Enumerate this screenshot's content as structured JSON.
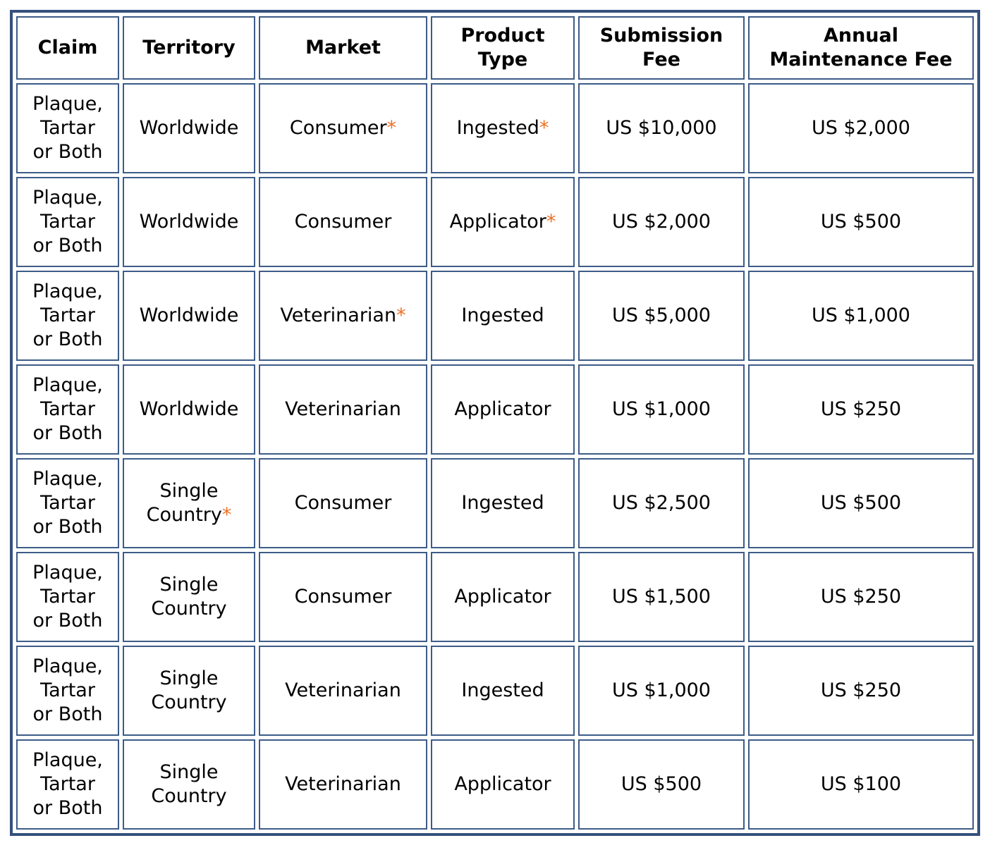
{
  "colors": {
    "outer_border": "#35517c",
    "cell_border": "#3d5c88",
    "asterisk": "#ee7023",
    "text": "#000000",
    "background": "#ffffff"
  },
  "table": {
    "columns": [
      {
        "key": "claim",
        "label": "Claim"
      },
      {
        "key": "territory",
        "label": "Territory"
      },
      {
        "key": "market",
        "label": "Market"
      },
      {
        "key": "product",
        "label": "Product\nType"
      },
      {
        "key": "submission",
        "label": "Submission\nFee"
      },
      {
        "key": "maintenance",
        "label": "Annual\nMaintenance Fee"
      }
    ],
    "rows": [
      {
        "claim": {
          "text": "Plaque,\nTartar\nor Both",
          "mark": ""
        },
        "territory": {
          "text": "Worldwide",
          "mark": ""
        },
        "market": {
          "text": "Consumer",
          "mark": "*"
        },
        "product": {
          "text": "Ingested",
          "mark": "*"
        },
        "submission": {
          "text": "US $10,000",
          "mark": ""
        },
        "maintenance": {
          "text": "US $2,000",
          "mark": ""
        }
      },
      {
        "claim": {
          "text": "Plaque,\nTartar\nor Both",
          "mark": ""
        },
        "territory": {
          "text": "Worldwide",
          "mark": ""
        },
        "market": {
          "text": "Consumer",
          "mark": ""
        },
        "product": {
          "text": "Applicator",
          "mark": "*"
        },
        "submission": {
          "text": "US $2,000",
          "mark": ""
        },
        "maintenance": {
          "text": "US $500",
          "mark": ""
        }
      },
      {
        "claim": {
          "text": "Plaque,\nTartar\nor Both",
          "mark": ""
        },
        "territory": {
          "text": "Worldwide",
          "mark": ""
        },
        "market": {
          "text": "Veterinarian",
          "mark": "*"
        },
        "product": {
          "text": "Ingested",
          "mark": ""
        },
        "submission": {
          "text": "US $5,000",
          "mark": ""
        },
        "maintenance": {
          "text": "US $1,000",
          "mark": ""
        }
      },
      {
        "claim": {
          "text": "Plaque,\nTartar\nor Both",
          "mark": ""
        },
        "territory": {
          "text": "Worldwide",
          "mark": ""
        },
        "market": {
          "text": "Veterinarian",
          "mark": ""
        },
        "product": {
          "text": "Applicator",
          "mark": ""
        },
        "submission": {
          "text": "US $1,000",
          "mark": ""
        },
        "maintenance": {
          "text": "US $250",
          "mark": ""
        }
      },
      {
        "claim": {
          "text": "Plaque,\nTartar\nor Both",
          "mark": ""
        },
        "territory": {
          "text": "Single\nCountry",
          "mark": "*"
        },
        "market": {
          "text": "Consumer",
          "mark": ""
        },
        "product": {
          "text": "Ingested",
          "mark": ""
        },
        "submission": {
          "text": "US $2,500",
          "mark": ""
        },
        "maintenance": {
          "text": "US $500",
          "mark": ""
        }
      },
      {
        "claim": {
          "text": "Plaque,\nTartar\nor Both",
          "mark": ""
        },
        "territory": {
          "text": "Single\nCountry",
          "mark": ""
        },
        "market": {
          "text": "Consumer",
          "mark": ""
        },
        "product": {
          "text": "Applicator",
          "mark": ""
        },
        "submission": {
          "text": "US $1,500",
          "mark": ""
        },
        "maintenance": {
          "text": "US $250",
          "mark": ""
        }
      },
      {
        "claim": {
          "text": "Plaque,\nTartar\nor Both",
          "mark": ""
        },
        "territory": {
          "text": "Single\nCountry",
          "mark": ""
        },
        "market": {
          "text": "Veterinarian",
          "mark": ""
        },
        "product": {
          "text": "Ingested",
          "mark": ""
        },
        "submission": {
          "text": "US $1,000",
          "mark": ""
        },
        "maintenance": {
          "text": "US $250",
          "mark": ""
        }
      },
      {
        "claim": {
          "text": "Plaque,\nTartar\nor Both",
          "mark": ""
        },
        "territory": {
          "text": "Single\nCountry",
          "mark": ""
        },
        "market": {
          "text": "Veterinarian",
          "mark": ""
        },
        "product": {
          "text": "Applicator",
          "mark": ""
        },
        "submission": {
          "text": "US $500",
          "mark": ""
        },
        "maintenance": {
          "text": "US $100",
          "mark": ""
        }
      }
    ]
  }
}
